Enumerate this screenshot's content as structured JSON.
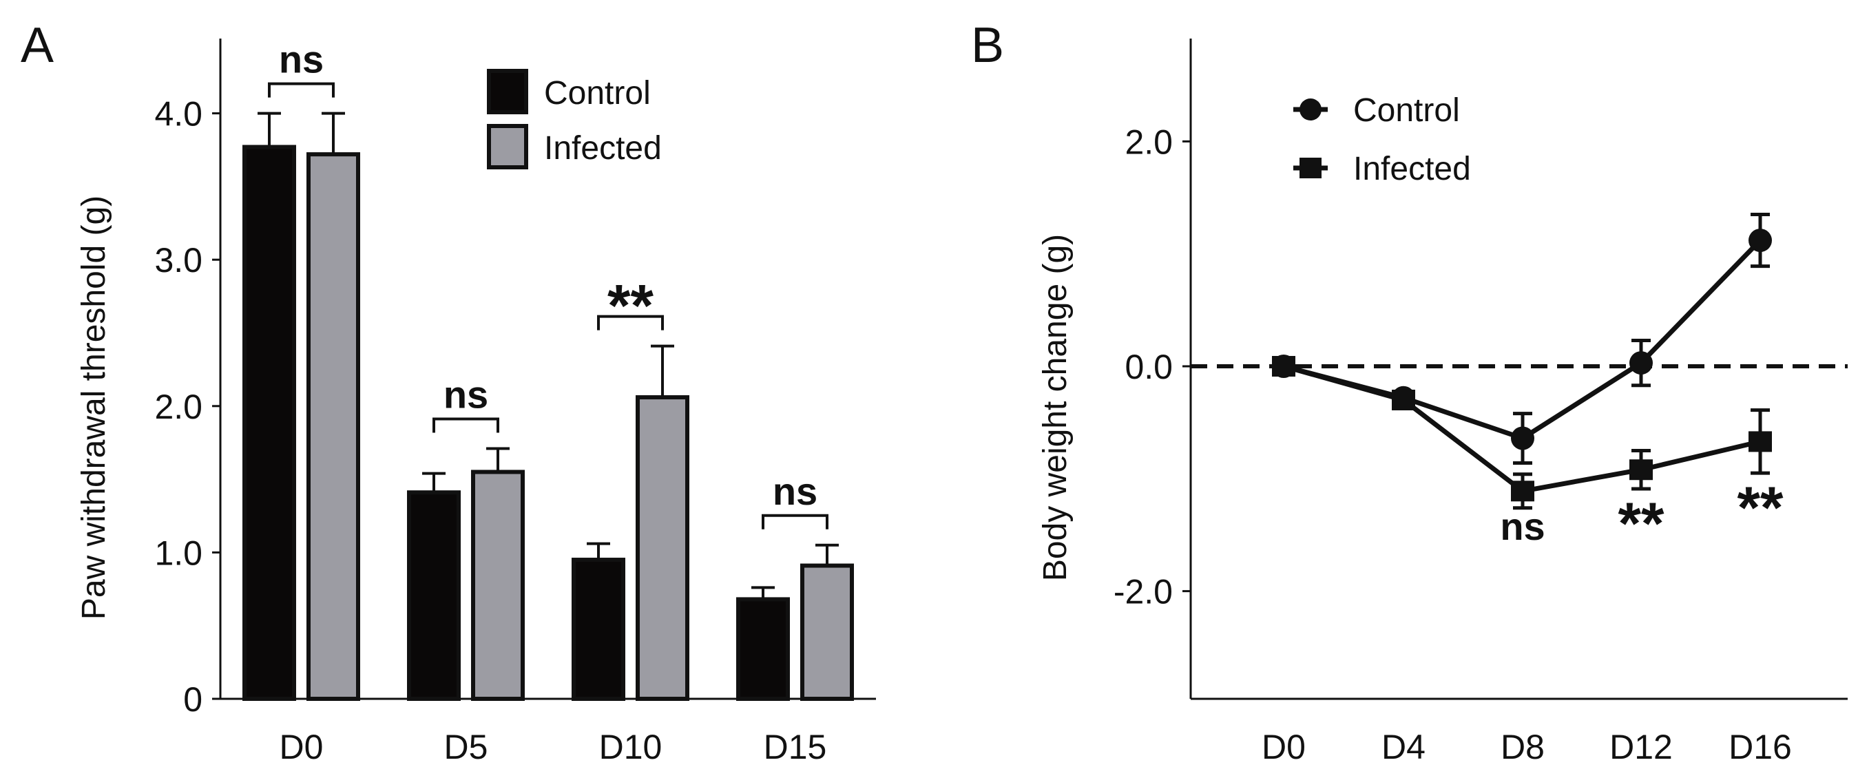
{
  "chart_data": [
    {
      "panel_label": "A",
      "type": "bar",
      "ylabel": "Paw withdrawal threshold (g)",
      "xlabel": "",
      "categories": [
        "D0",
        "D5",
        "D10",
        "D15"
      ],
      "ylim": [
        0,
        4.5
      ],
      "yticks": [
        "0",
        "1.0",
        "2.0",
        "3.0",
        "4.0"
      ],
      "ytick_values": [
        0,
        1,
        2,
        3,
        4
      ],
      "grid": false,
      "legend": "top-right",
      "series": [
        {
          "name": "Control",
          "color": "#0a0808",
          "values": [
            3.77,
            1.41,
            0.95,
            0.68
          ],
          "error": [
            0.23,
            0.13,
            0.11,
            0.08
          ]
        },
        {
          "name": "Infected",
          "color": "#9c9ca3",
          "values": [
            3.72,
            1.55,
            2.06,
            0.91
          ],
          "error": [
            0.28,
            0.16,
            0.35,
            0.14
          ]
        }
      ],
      "significance": [
        "ns",
        "ns",
        "**",
        "ns"
      ]
    },
    {
      "panel_label": "B",
      "type": "line",
      "ylabel": "Body weight change (g)",
      "xlabel": "",
      "categories": [
        "D0",
        "D4",
        "D8",
        "D12",
        "D16"
      ],
      "ylim": [
        -3,
        2.9
      ],
      "yticks": [
        "-2.0",
        "0.0",
        "2.0"
      ],
      "ytick_values": [
        -2,
        0,
        2
      ],
      "grid": false,
      "legend": "top-left",
      "reference_line": 0,
      "series": [
        {
          "name": "Control",
          "marker": "circle",
          "values": [
            0,
            -0.28,
            -0.64,
            0.03,
            1.12
          ],
          "error": [
            0,
            0.05,
            0.22,
            0.2,
            0.23
          ]
        },
        {
          "name": "Infected",
          "marker": "square",
          "values": [
            0,
            -0.3,
            -1.11,
            -0.92,
            -0.67
          ],
          "error": [
            0,
            0.05,
            0.15,
            0.17,
            0.28
          ]
        }
      ],
      "significance": [
        "",
        "",
        "ns",
        "**",
        "**"
      ]
    }
  ]
}
